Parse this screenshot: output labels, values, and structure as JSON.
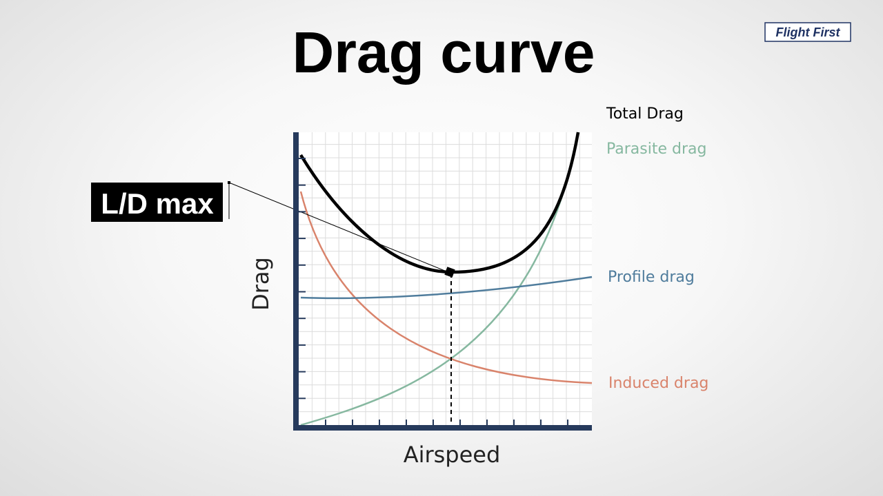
{
  "title": "Drag curve",
  "logo": "Flight First",
  "callout": "L/D max",
  "axes": {
    "y": "Drag",
    "x": "Airspeed"
  },
  "legend": [
    "Total Drag",
    "Parasite drag",
    "Profile drag",
    "Induced drag"
  ]
}
